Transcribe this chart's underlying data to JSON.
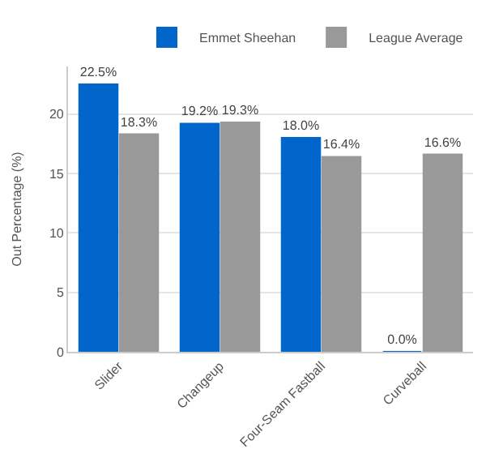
{
  "chart_data": {
    "type": "bar",
    "ylabel": "Out Percentage (%)",
    "categories": [
      "Slider",
      "Changeup",
      "Four-Seam Fastball",
      "Curveball"
    ],
    "series": [
      {
        "name": "Emmet Sheehan",
        "color": "#0066cc",
        "values": [
          22.5,
          19.2,
          18.0,
          0.0
        ],
        "value_labels": [
          "22.5%",
          "19.2%",
          "18.0%",
          "0.0%"
        ]
      },
      {
        "name": "League Average",
        "color": "#999999",
        "values": [
          18.3,
          19.3,
          16.4,
          16.6
        ],
        "value_labels": [
          "18.3%",
          "19.3%",
          "16.4%",
          "16.6%"
        ]
      }
    ],
    "ylim": [
      0,
      24
    ],
    "yticks": [
      0,
      5,
      10,
      15,
      20
    ],
    "grid": "y",
    "legend": "top right"
  }
}
